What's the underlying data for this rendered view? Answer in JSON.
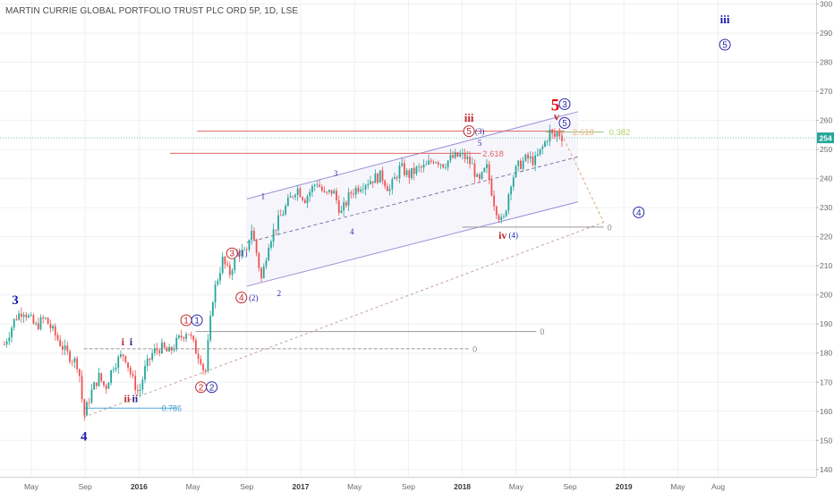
{
  "chart_data": {
    "type": "candlestick",
    "title": "MARTIN CURRIE GLOBAL PORTFOLIO TRUST PLC ORD 5P, 1D, LSE",
    "ylim": [
      136,
      302
    ],
    "y_ticks": [
      "140",
      "150",
      "160",
      "170",
      "180",
      "190",
      "200",
      "210",
      "220",
      "230",
      "240",
      "250",
      "260",
      "270",
      "280",
      "290",
      "300"
    ],
    "last_price": "254",
    "x_ticks": [
      {
        "label": "May",
        "t": 0.0
      },
      {
        "label": "Sep",
        "t": 4.0
      },
      {
        "label": "2016",
        "t": 8.0
      },
      {
        "label": "May",
        "t": 12.0
      },
      {
        "label": "Sep",
        "t": 16.0
      },
      {
        "label": "2017",
        "t": 20.0
      },
      {
        "label": "May",
        "t": 24.0
      },
      {
        "label": "Sep",
        "t": 28.0
      },
      {
        "label": "2018",
        "t": 32.0
      },
      {
        "label": "May",
        "t": 36.0
      },
      {
        "label": "Sep",
        "t": 40.0
      },
      {
        "label": "2019",
        "t": 44.0
      },
      {
        "label": "May",
        "t": 48.0
      },
      {
        "label": "Aug",
        "t": 51.0
      }
    ],
    "price_path": [
      [
        -2.0,
        183
      ],
      [
        -1.2,
        192
      ],
      [
        -0.6,
        195
      ],
      [
        0.3,
        189
      ],
      [
        1.0,
        192
      ],
      [
        1.8,
        186
      ],
      [
        2.6,
        180
      ],
      [
        3.5,
        176
      ],
      [
        3.9,
        158
      ],
      [
        4.4,
        166
      ],
      [
        5.0,
        172
      ],
      [
        5.5,
        168
      ],
      [
        6.1,
        176
      ],
      [
        6.9,
        180
      ],
      [
        7.5,
        171
      ],
      [
        8.0,
        166
      ],
      [
        8.4,
        174
      ],
      [
        9.0,
        180
      ],
      [
        9.6,
        182
      ],
      [
        10.2,
        180
      ],
      [
        11.0,
        185
      ],
      [
        11.6,
        188
      ],
      [
        12.2,
        181
      ],
      [
        12.6,
        178
      ],
      [
        12.9,
        172
      ],
      [
        13.1,
        182
      ],
      [
        13.5,
        200
      ],
      [
        14.2,
        212
      ],
      [
        14.7,
        207
      ],
      [
        15.3,
        215
      ],
      [
        16.0,
        214
      ],
      [
        16.3,
        224
      ],
      [
        16.7,
        215
      ],
      [
        17.1,
        205
      ],
      [
        17.6,
        218
      ],
      [
        18.4,
        226
      ],
      [
        19.1,
        232
      ],
      [
        19.7,
        237
      ],
      [
        20.3,
        233
      ],
      [
        21.2,
        239
      ],
      [
        21.8,
        234
      ],
      [
        22.4,
        236
      ],
      [
        23.0,
        228
      ],
      [
        23.7,
        235
      ],
      [
        24.5,
        238
      ],
      [
        25.4,
        240
      ],
      [
        26.0,
        241
      ],
      [
        26.6,
        236
      ],
      [
        27.4,
        244
      ],
      [
        28.0,
        241
      ],
      [
        28.6,
        243
      ],
      [
        29.3,
        244
      ],
      [
        29.9,
        247
      ],
      [
        30.6,
        245
      ],
      [
        31.2,
        247
      ],
      [
        31.9,
        248
      ],
      [
        32.3,
        247
      ],
      [
        32.8,
        244
      ],
      [
        33.2,
        238
      ],
      [
        33.8,
        244
      ],
      [
        34.4,
        231
      ],
      [
        35.0,
        224
      ],
      [
        35.6,
        239
      ],
      [
        36.1,
        244
      ],
      [
        36.8,
        247
      ],
      [
        37.4,
        246
      ],
      [
        38.0,
        251
      ],
      [
        38.5,
        256
      ],
      [
        38.8,
        254
      ],
      [
        39.1,
        256
      ],
      [
        39.3,
        255
      ],
      [
        39.5,
        254
      ]
    ],
    "channel": {
      "upper": [
        [
          16.0,
          233
        ],
        [
          40.6,
          263
        ]
      ],
      "lower": [
        [
          16.0,
          203
        ],
        [
          40.6,
          232
        ]
      ],
      "middle": [
        [
          16.0,
          218
        ],
        [
          40.6,
          247.5
        ]
      ]
    },
    "horizontal_levels": [
      {
        "name": "level-256",
        "from": 12.3,
        "to": 39.6,
        "y": 256.3,
        "color": "#e06666"
      },
      {
        "name": "level-249",
        "from": 10.3,
        "to": 33.4,
        "y": 248.7,
        "color": "#e06666"
      },
      {
        "name": "level-256-green",
        "from": 38.2,
        "to": 42.5,
        "y": 256,
        "color": "#93c47d"
      },
      {
        "name": "level-224",
        "from": 32.0,
        "to": 42.5,
        "y": 223.3,
        "color": "#999999",
        "label": "0"
      },
      {
        "name": "level-187",
        "from": 12.2,
        "to": 37.5,
        "y": 187.4,
        "color": "#999999",
        "label": "0"
      },
      {
        "name": "level-181",
        "from": 3.9,
        "to": 32.5,
        "y": 181.5,
        "color": "#999999",
        "label": "0",
        "dashed": true
      },
      {
        "name": "level-161",
        "from": 3.9,
        "to": 10.8,
        "y": 161.1,
        "color": "#4aa8d8",
        "label": "0.786"
      }
    ],
    "diagonal_lines": [
      {
        "from": [
          3.9,
          158
        ],
        "to": [
          42.5,
          225
        ],
        "color": "#c9a0a0",
        "dashed": true
      },
      {
        "from": [
          39.2,
          257
        ],
        "to": [
          42.5,
          225
        ],
        "color": "#d7a86e",
        "dashed": true
      }
    ],
    "fib_labels": [
      {
        "text": "2.618",
        "t": 33.5,
        "y": 248.7,
        "color": "#e06666"
      },
      {
        "text": "2.618",
        "t": 40.2,
        "y": 256,
        "color": "#f0b27a"
      },
      {
        "text": "0.382",
        "t": 42.9,
        "y": 256,
        "color": "#b5cf6b"
      }
    ],
    "wave_labels": [
      {
        "text": "3",
        "t": -1.2,
        "y": 198.5,
        "color": "#1a1aa6",
        "size": 15,
        "shape": "plain"
      },
      {
        "text": "4",
        "t": 3.9,
        "y": 151.5,
        "color": "#1a1aa6",
        "size": 15,
        "shape": "plain"
      },
      {
        "text": "i",
        "t": 6.8,
        "y": 184,
        "color": "#c0282d",
        "size": 12,
        "shape": "plain"
      },
      {
        "text": "i",
        "t": 7.4,
        "y": 184,
        "color": "#2a2a8a",
        "size": 12,
        "shape": "plain"
      },
      {
        "text": "ii",
        "t": 7.1,
        "y": 164.5,
        "color": "#c0282d",
        "size": 12,
        "shape": "plain"
      },
      {
        "text": "ii",
        "t": 7.7,
        "y": 164.5,
        "color": "#2a2a8a",
        "size": 12,
        "shape": "plain"
      },
      {
        "text": "1",
        "t": 11.5,
        "y": 191.3,
        "color": "#c0282d",
        "size": 10,
        "shape": "circle"
      },
      {
        "text": "1",
        "t": 12.3,
        "y": 191.3,
        "color": "#2a2aa8",
        "size": 10,
        "shape": "circle"
      },
      {
        "text": "2",
        "t": 12.6,
        "y": 168.3,
        "color": "#c0282d",
        "size": 10,
        "shape": "circle"
      },
      {
        "text": "2",
        "t": 13.4,
        "y": 168.3,
        "color": "#2a2aa8",
        "size": 10,
        "shape": "circle"
      },
      {
        "text": "3",
        "t": 14.9,
        "y": 214.3,
        "color": "#c0282d",
        "size": 10,
        "shape": "circle"
      },
      {
        "text": "(1)",
        "t": 15.7,
        "y": 214.3,
        "color": "#2a2aa8",
        "size": 9,
        "shape": "plain"
      },
      {
        "text": "4",
        "t": 15.6,
        "y": 199.1,
        "color": "#c0282d",
        "size": 10,
        "shape": "circle"
      },
      {
        "text": "(2)",
        "t": 16.5,
        "y": 199.1,
        "color": "#2a2aa8",
        "size": 9,
        "shape": "plain"
      },
      {
        "text": "1",
        "t": 17.2,
        "y": 234,
        "color": "#2a2aa8",
        "size": 9,
        "shape": "plain"
      },
      {
        "text": "2",
        "t": 18.4,
        "y": 200.6,
        "color": "#2a2aa8",
        "size": 9,
        "shape": "plain"
      },
      {
        "text": "3",
        "t": 22.6,
        "y": 241.8,
        "color": "#2a2aa8",
        "size": 9,
        "shape": "plain"
      },
      {
        "text": "4",
        "t": 23.8,
        "y": 221.8,
        "color": "#2a2aa8",
        "size": 9,
        "shape": "plain"
      },
      {
        "text": "iii",
        "t": 32.5,
        "y": 261,
        "color": "#c0282d",
        "size": 13,
        "shape": "plain"
      },
      {
        "text": "5",
        "t": 32.5,
        "y": 256.3,
        "color": "#c0282d",
        "size": 10,
        "shape": "circle"
      },
      {
        "text": "(3)",
        "t": 33.3,
        "y": 256.3,
        "color": "#2a2aa8",
        "size": 9,
        "shape": "plain"
      },
      {
        "text": "5",
        "t": 33.3,
        "y": 252.2,
        "color": "#2a2aa8",
        "size": 9,
        "shape": "plain"
      },
      {
        "text": "iv",
        "t": 35.0,
        "y": 220.5,
        "color": "#c0282d",
        "size": 12,
        "shape": "plain"
      },
      {
        "text": "(4)",
        "t": 35.8,
        "y": 220.5,
        "color": "#2a2aa8",
        "size": 9,
        "shape": "plain"
      },
      {
        "text": "5",
        "t": 38.9,
        "y": 265.5,
        "color": "#e00000",
        "size": 19,
        "shape": "plain"
      },
      {
        "text": "3",
        "t": 39.6,
        "y": 265.6,
        "color": "#2a2aa8",
        "size": 10,
        "shape": "circle"
      },
      {
        "text": "v",
        "t": 39.0,
        "y": 261.5,
        "color": "#c0282d",
        "size": 13,
        "shape": "plain"
      },
      {
        "text": "5",
        "t": 39.6,
        "y": 259.1,
        "color": "#2a2aa8",
        "size": 10,
        "shape": "circle"
      },
      {
        "text": "4",
        "t": 45.1,
        "y": 228.4,
        "color": "#2a2aa8",
        "size": 10,
        "shape": "circle"
      },
      {
        "text": "iii",
        "t": 51.5,
        "y": 294.8,
        "color": "#1a1aa6",
        "size": 13,
        "shape": "plain"
      },
      {
        "text": "5",
        "t": 51.5,
        "y": 286,
        "color": "#2a2aa8",
        "size": 10,
        "shape": "circle"
      }
    ],
    "colors": {
      "up": "#26a69a",
      "down": "#ef5350",
      "grid": "#eef0f2",
      "axis_text": "#6b6b6b",
      "price_line": "#26a69a"
    }
  }
}
